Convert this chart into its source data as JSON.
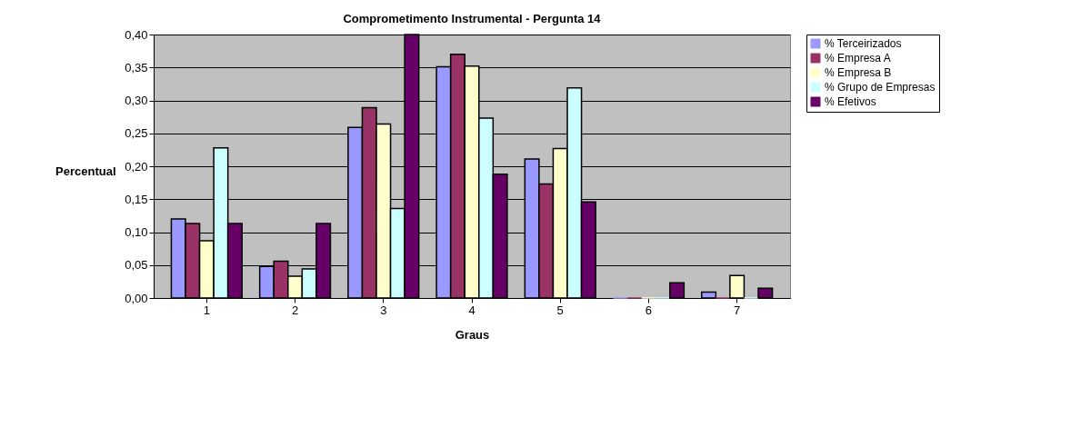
{
  "chart_data": {
    "type": "bar",
    "title": "Comprometimento  Instrumental - Pergunta 14",
    "xlabel": "Graus",
    "ylabel": "Percentual",
    "categories": [
      "1",
      "2",
      "3",
      "4",
      "5",
      "6",
      "7"
    ],
    "series": [
      {
        "name": "% Terceirizados",
        "color": "#9999ff",
        "values": [
          0.12,
          0.048,
          0.259,
          0.351,
          0.211,
          0,
          0.009
        ]
      },
      {
        "name": "% Empresa A",
        "color": "#993366",
        "values": [
          0.113,
          0.056,
          0.289,
          0.37,
          0.173,
          0,
          0
        ]
      },
      {
        "name": "% Empresa B",
        "color": "#ffffcc",
        "values": [
          0.087,
          0.033,
          0.264,
          0.352,
          0.227,
          0,
          0.034
        ]
      },
      {
        "name": "% Grupo de Empresas",
        "color": "#ccffff",
        "values": [
          0.228,
          0.044,
          0.136,
          0.273,
          0.319,
          0,
          0
        ]
      },
      {
        "name": "% Efetivos",
        "color": "#660066",
        "values": [
          0.113,
          0.113,
          0.4,
          0.188,
          0.146,
          0.023,
          0.015
        ]
      }
    ],
    "ylim": [
      0,
      0.4
    ],
    "yticks": [
      {
        "value": 0,
        "label": "0,00"
      },
      {
        "value": 0.05,
        "label": "0,05"
      },
      {
        "value": 0.1,
        "label": "0,10"
      },
      {
        "value": 0.15,
        "label": "0,15"
      },
      {
        "value": 0.2,
        "label": "0,20"
      },
      {
        "value": 0.25,
        "label": "0,25"
      },
      {
        "value": 0.3,
        "label": "0,30"
      },
      {
        "value": 0.35,
        "label": "0,35"
      },
      {
        "value": 0.4,
        "label": "0,40"
      }
    ],
    "grid": "y",
    "legend": "right"
  }
}
